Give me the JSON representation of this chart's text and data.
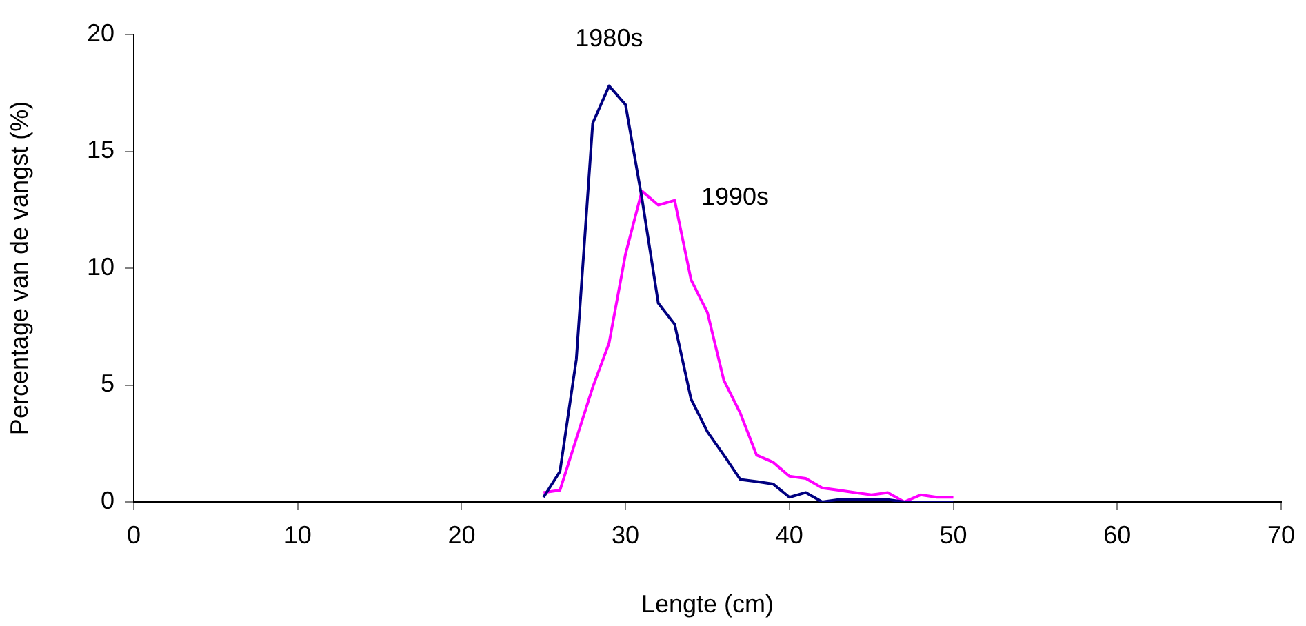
{
  "chart_data": {
    "type": "line",
    "xlabel": "Lengte (cm)",
    "ylabel": "Percentage van de vangst (%)",
    "x": [
      25,
      26,
      27,
      28,
      29,
      30,
      31,
      32,
      33,
      34,
      35,
      36,
      37,
      38,
      39,
      40,
      41,
      42,
      43,
      44,
      45,
      46,
      47,
      48,
      49,
      50
    ],
    "series": [
      {
        "name": "1980s",
        "color": "#000080",
        "values": [
          0.2,
          1.3,
          6.1,
          16.2,
          17.8,
          17.0,
          13.0,
          8.5,
          7.6,
          4.4,
          3.0,
          2.0,
          0.96,
          0.87,
          0.77,
          0.2,
          0.4,
          0,
          0.1,
          0.1,
          0.1,
          0.1,
          0,
          0,
          0,
          0
        ]
      },
      {
        "name": "1990s",
        "color": "#ff00ff",
        "values": [
          0.4,
          0.5,
          2.7,
          4.9,
          6.8,
          10.6,
          13.3,
          12.7,
          12.9,
          9.5,
          8.1,
          5.2,
          3.8,
          2.0,
          1.7,
          1.1,
          1.0,
          0.6,
          0.5,
          0.4,
          0.3,
          0.4,
          0,
          0.3,
          0.2,
          0.2
        ]
      }
    ],
    "xlim": [
      0,
      70
    ],
    "xticks": [
      0,
      10,
      20,
      30,
      40,
      50,
      60,
      70
    ],
    "ylim": [
      0,
      20
    ],
    "yticks": [
      0,
      5,
      10,
      15,
      20
    ],
    "grid": false,
    "legend": false,
    "marker": "none",
    "line_style": "solid"
  }
}
